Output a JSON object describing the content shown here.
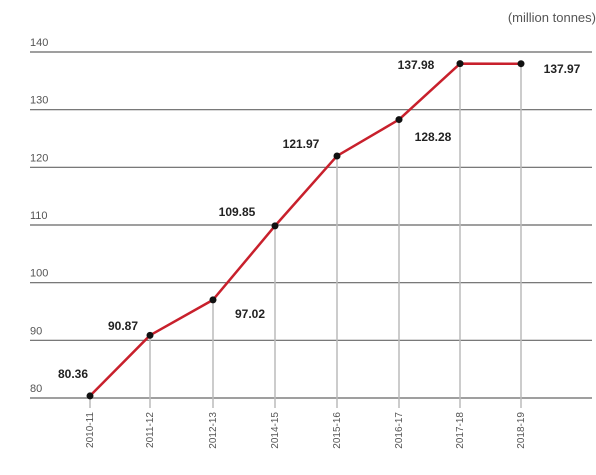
{
  "chart_data": {
    "type": "line",
    "unit_label": "(million tonnes)",
    "categories": [
      "2010-11",
      "2011-12",
      "2012-13",
      "2014-15",
      "2015-16",
      "2016-17",
      "2017-18",
      "2018-19"
    ],
    "values": [
      80.36,
      90.87,
      97.02,
      109.85,
      121.97,
      128.28,
      137.98,
      137.97
    ],
    "value_labels": [
      "80.36",
      "90.87",
      "97.02",
      "109.85",
      "121.97",
      "128.28",
      "137.98",
      "137.97"
    ],
    "ylim": [
      80,
      140
    ],
    "yticks": [
      80,
      90,
      100,
      110,
      120,
      130,
      140
    ],
    "ytick_labels": [
      "80",
      "90",
      "100",
      "110",
      "120",
      "130",
      "140"
    ],
    "grid": true,
    "line_color": "#c8202c",
    "marker_color": "#111111",
    "gridline_color": "#666666",
    "dropline_color": "#bbbbbb"
  }
}
